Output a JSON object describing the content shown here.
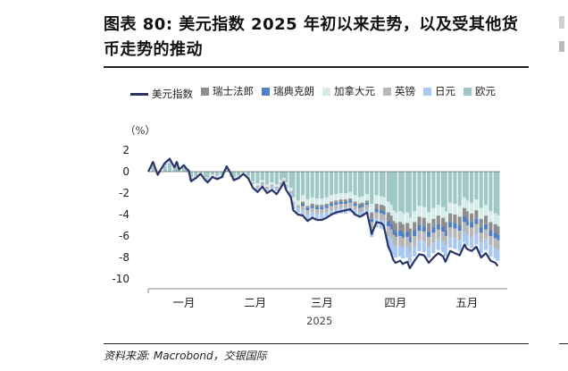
{
  "figure": {
    "title": "图表 80: 美元指数 2025 年初以来走势，以及受其他货币走势的推动",
    "source": "资料来源: Macrobond，交银国际"
  },
  "chart_data": {
    "type": "bar+line",
    "unit_label": "（%）",
    "year_label": "2025",
    "ylim": [
      -10,
      2
    ],
    "yticks": [
      2,
      0,
      -2,
      -4,
      -6,
      -8,
      -10
    ],
    "xticks": [
      {
        "label": "一月",
        "x": 15
      },
      {
        "label": "二月",
        "x": 45
      },
      {
        "label": "三月",
        "x": 73
      },
      {
        "label": "四月",
        "x": 104
      },
      {
        "label": "五月",
        "x": 134
      }
    ],
    "x_range": [
      0,
      148
    ],
    "legend_position": "top",
    "series": [
      {
        "name": "美元指数",
        "kind": "line",
        "color": "#2b3467",
        "x": [
          0,
          2,
          4,
          5,
          7,
          9,
          11,
          12,
          13,
          15,
          16,
          17,
          18,
          20,
          22,
          24,
          25,
          27,
          29,
          31,
          33,
          35,
          36,
          38,
          40,
          42,
          44,
          46,
          48,
          50,
          52,
          54,
          56,
          57,
          58,
          60,
          61,
          63,
          65,
          67,
          69,
          71,
          73,
          75,
          77,
          79,
          81,
          83,
          85,
          87,
          89,
          90,
          92,
          94,
          96,
          98,
          99,
          101,
          102,
          103,
          104,
          106,
          107,
          109,
          110,
          112,
          114,
          116,
          118,
          120,
          122,
          124,
          125,
          127,
          129,
          131,
          133,
          134,
          136,
          138,
          140,
          142,
          144,
          146,
          147
        ],
        "y": [
          0,
          0.9,
          -0.3,
          0.1,
          0.8,
          1.2,
          0.4,
          0.9,
          0.2,
          0.6,
          0.3,
          0.1,
          -0.9,
          -0.6,
          -0.2,
          -0.8,
          -1.0,
          -0.5,
          -0.7,
          -0.5,
          0.5,
          -0.3,
          -0.8,
          -0.6,
          -0.2,
          -0.6,
          -1.5,
          -1.9,
          -1.4,
          -2.0,
          -1.7,
          -2.1,
          -1.4,
          -1.0,
          -1.7,
          -2.4,
          -3.6,
          -4.0,
          -4.1,
          -4.6,
          -4.3,
          -4.5,
          -4.5,
          -4.3,
          -4.0,
          -3.8,
          -3.7,
          -3.6,
          -3.5,
          -4.0,
          -4.2,
          -4.1,
          -3.8,
          -5.8,
          -4.7,
          -4.8,
          -5.0,
          -7.0,
          -7.5,
          -8.2,
          -8.5,
          -8.3,
          -8.6,
          -8.4,
          -9.0,
          -8.3,
          -7.7,
          -7.8,
          -8.5,
          -8.0,
          -7.6,
          -7.9,
          -8.4,
          -7.4,
          -7.6,
          -7.8,
          -6.8,
          -7.2,
          -7.4,
          -7.0,
          -8.0,
          -7.6,
          -8.3,
          -8.5,
          -8.8
        ]
      },
      {
        "name": "瑞士法郎",
        "kind": "bar",
        "color": "#8e8e8e",
        "lead": "加拿大元",
        "x": [
          0,
          2,
          4,
          5,
          7,
          9,
          11,
          12,
          13,
          15,
          16,
          17,
          18,
          20,
          22,
          24,
          25,
          27,
          29,
          31,
          33,
          35,
          36,
          38,
          40,
          42,
          44,
          46,
          48,
          50,
          52,
          54,
          56,
          57,
          58,
          60,
          61,
          63,
          65,
          67,
          69,
          71,
          73,
          75,
          77,
          79,
          81,
          83,
          85,
          87,
          89,
          90,
          92,
          94,
          96,
          98,
          99,
          101,
          102,
          103,
          104,
          106,
          107,
          109,
          110,
          112,
          114,
          116,
          118,
          120,
          122,
          124,
          125,
          127,
          129,
          131,
          133,
          134,
          136,
          138,
          140,
          142,
          144,
          146,
          147
        ],
        "y": [
          0,
          0,
          0,
          0,
          0,
          0,
          0,
          0,
          0,
          0,
          0,
          0,
          0,
          0,
          0,
          0,
          0,
          0,
          0,
          0,
          0,
          0,
          0,
          0,
          0,
          0,
          0,
          0,
          0,
          0,
          0,
          0,
          0,
          0,
          0,
          0,
          0,
          0,
          -0.2,
          -0.2,
          -0.2,
          -0.2,
          -0.2,
          -0.2,
          -0.2,
          -0.2,
          -0.2,
          -0.2,
          -0.2,
          -0.2,
          -0.2,
          -0.2,
          -0.2,
          -0.6,
          -0.5,
          -0.5,
          -0.5,
          -0.8,
          -0.8,
          -0.8,
          -0.8,
          -0.8,
          -0.8,
          -0.8,
          -0.8,
          -0.8,
          -0.8,
          -0.8,
          -0.8,
          -0.8,
          -0.8,
          -0.8,
          -0.8,
          -0.8,
          -0.8,
          -0.8,
          -0.8,
          -0.8,
          -0.8,
          -0.8,
          -0.8,
          -0.8,
          -0.8,
          -0.8,
          -0.8
        ]
      },
      {
        "name": "瑞典克朗",
        "kind": "bar",
        "color": "#4f7fc4",
        "lead": "瑞士法郎",
        "x": [
          0,
          2,
          4,
          5,
          7,
          9,
          11,
          12,
          13,
          15,
          16,
          17,
          18,
          20,
          22,
          24,
          25,
          27,
          29,
          31,
          33,
          35,
          36,
          38,
          40,
          42,
          44,
          46,
          48,
          50,
          52,
          54,
          56,
          57,
          58,
          60,
          61,
          63,
          65,
          67,
          69,
          71,
          73,
          75,
          77,
          79,
          81,
          83,
          85,
          87,
          89,
          90,
          92,
          94,
          96,
          98,
          99,
          101,
          102,
          103,
          104,
          106,
          107,
          109,
          110,
          112,
          114,
          116,
          118,
          120,
          122,
          124,
          125,
          127,
          129,
          131,
          133,
          134,
          136,
          138,
          140,
          142,
          144,
          146,
          147
        ],
        "y": [
          0,
          0,
          0,
          0,
          0,
          0,
          0,
          0,
          0,
          0,
          0,
          0,
          0,
          0,
          0,
          0,
          0,
          0,
          0,
          0,
          0,
          0,
          0,
          0,
          0,
          0,
          0,
          0,
          0,
          0,
          0,
          0,
          0,
          0,
          0,
          0,
          0,
          0,
          -0.2,
          -0.2,
          -0.2,
          -0.2,
          -0.2,
          -0.2,
          -0.2,
          -0.2,
          -0.2,
          -0.2,
          -0.2,
          -0.2,
          -0.2,
          -0.2,
          -0.2,
          -0.3,
          -0.3,
          -0.3,
          -0.3,
          -0.5,
          -0.5,
          -0.5,
          -0.5,
          -0.5,
          -0.5,
          -0.5,
          -0.5,
          -0.5,
          -0.5,
          -0.5,
          -0.5,
          -0.5,
          -0.5,
          -0.5,
          -0.5,
          -0.5,
          -0.5,
          -0.5,
          -0.5,
          -0.5,
          -0.5,
          -0.5,
          -0.5,
          -0.5,
          -0.5,
          -0.5,
          -0.5
        ]
      },
      {
        "name": "加拿大元",
        "kind": "bar",
        "color": "#d6ece8",
        "lead": "欧元",
        "x": [
          0,
          2,
          4,
          5,
          7,
          9,
          11,
          12,
          13,
          15,
          16,
          17,
          18,
          20,
          22,
          24,
          25,
          27,
          29,
          31,
          33,
          35,
          36,
          38,
          40,
          42,
          44,
          46,
          48,
          50,
          52,
          54,
          56,
          57,
          58,
          60,
          61,
          63,
          65,
          67,
          69,
          71,
          73,
          75,
          77,
          79,
          81,
          83,
          85,
          87,
          89,
          90,
          92,
          94,
          96,
          98,
          99,
          101,
          102,
          103,
          104,
          106,
          107,
          109,
          110,
          112,
          114,
          116,
          118,
          120,
          122,
          124,
          125,
          127,
          129,
          131,
          133,
          134,
          136,
          138,
          140,
          142,
          144,
          146,
          147
        ],
        "y": [
          0,
          0.1,
          0,
          0,
          0.1,
          0.1,
          0,
          0.1,
          0,
          0,
          0,
          0,
          -0.1,
          -0.1,
          -0.1,
          -0.1,
          -0.1,
          -0.1,
          -0.1,
          -0.1,
          0,
          -0.1,
          -0.1,
          -0.1,
          -0.1,
          -0.1,
          -0.1,
          -0.2,
          -0.2,
          -0.2,
          -0.2,
          -0.2,
          -0.2,
          -0.2,
          -0.2,
          -0.3,
          -0.4,
          -0.4,
          -0.6,
          -0.6,
          -0.6,
          -0.6,
          -0.6,
          -0.6,
          -0.6,
          -0.6,
          -0.6,
          -0.6,
          -0.6,
          -0.6,
          -0.6,
          -0.6,
          -0.6,
          -0.8,
          -0.8,
          -0.8,
          -0.8,
          -1.0,
          -1.0,
          -1.0,
          -1.0,
          -1.0,
          -1.0,
          -1.0,
          -1.0,
          -1.0,
          -1.0,
          -1.0,
          -1.0,
          -1.0,
          -1.0,
          -1.0,
          -1.0,
          -1.0,
          -1.0,
          -1.0,
          -1.0,
          -1.0,
          -1.0,
          -1.0,
          -1.0,
          -1.0,
          -1.0,
          -1.0,
          -1.0
        ]
      },
      {
        "name": "英镑",
        "kind": "bar",
        "color": "#b7b7b7",
        "lead": "瑞典克朗",
        "x": [
          0,
          2,
          4,
          5,
          7,
          9,
          11,
          12,
          13,
          15,
          16,
          17,
          18,
          20,
          22,
          24,
          25,
          27,
          29,
          31,
          33,
          35,
          36,
          38,
          40,
          42,
          44,
          46,
          48,
          50,
          52,
          54,
          56,
          57,
          58,
          60,
          61,
          63,
          65,
          67,
          69,
          71,
          73,
          75,
          77,
          79,
          81,
          83,
          85,
          87,
          89,
          90,
          92,
          94,
          96,
          98,
          99,
          101,
          102,
          103,
          104,
          106,
          107,
          109,
          110,
          112,
          114,
          116,
          118,
          120,
          122,
          124,
          125,
          127,
          129,
          131,
          133,
          134,
          136,
          138,
          140,
          142,
          144,
          146,
          147
        ],
        "y": [
          0,
          0.1,
          0,
          0,
          0.1,
          0.1,
          0,
          0.1,
          0,
          0,
          0,
          0,
          -0.1,
          -0.1,
          -0.1,
          -0.1,
          -0.1,
          -0.1,
          -0.1,
          -0.1,
          0,
          -0.1,
          -0.1,
          -0.1,
          -0.1,
          -0.1,
          -0.1,
          -0.2,
          -0.2,
          -0.2,
          -0.2,
          -0.2,
          -0.2,
          -0.2,
          -0.2,
          -0.2,
          -0.3,
          -0.3,
          -0.4,
          -0.4,
          -0.4,
          -0.4,
          -0.4,
          -0.4,
          -0.4,
          -0.4,
          -0.4,
          -0.4,
          -0.4,
          -0.4,
          -0.4,
          -0.4,
          -0.4,
          -0.6,
          -0.6,
          -0.6,
          -0.6,
          -0.9,
          -0.9,
          -0.9,
          -0.9,
          -0.9,
          -0.9,
          -0.9,
          -0.9,
          -0.9,
          -0.9,
          -0.9,
          -0.9,
          -0.9,
          -0.9,
          -0.9,
          -0.9,
          -0.9,
          -0.9,
          -0.9,
          -0.9,
          -0.9,
          -0.9,
          -0.9,
          -0.9,
          -0.9,
          -0.9,
          -0.9,
          -0.9
        ]
      },
      {
        "name": "日元",
        "kind": "bar",
        "color": "#a9c8f2",
        "lead": "英镑",
        "x": [
          0,
          2,
          4,
          5,
          7,
          9,
          11,
          12,
          13,
          15,
          16,
          17,
          18,
          20,
          22,
          24,
          25,
          27,
          29,
          31,
          33,
          35,
          36,
          38,
          40,
          42,
          44,
          46,
          48,
          50,
          52,
          54,
          56,
          57,
          58,
          60,
          61,
          63,
          65,
          67,
          69,
          71,
          73,
          75,
          77,
          79,
          81,
          83,
          85,
          87,
          89,
          90,
          92,
          94,
          96,
          98,
          99,
          101,
          102,
          103,
          104,
          106,
          107,
          109,
          110,
          112,
          114,
          116,
          118,
          120,
          122,
          124,
          125,
          127,
          129,
          131,
          133,
          134,
          136,
          138,
          140,
          142,
          144,
          146,
          147
        ],
        "y": [
          0,
          0.1,
          0,
          0,
          0.1,
          0.1,
          0,
          0.1,
          0,
          0,
          0,
          0,
          -0.1,
          -0.1,
          -0.1,
          -0.1,
          -0.1,
          -0.1,
          -0.1,
          -0.1,
          0,
          -0.1,
          -0.1,
          -0.1,
          -0.1,
          -0.1,
          -0.1,
          -0.2,
          -0.2,
          -0.2,
          -0.2,
          -0.2,
          -0.2,
          -0.2,
          -0.2,
          -0.3,
          -0.4,
          -0.4,
          -0.5,
          -0.5,
          -0.5,
          -0.5,
          -0.5,
          -0.5,
          -0.5,
          -0.5,
          -0.5,
          -0.5,
          -0.5,
          -0.5,
          -0.5,
          -0.5,
          -0.5,
          -0.8,
          -0.8,
          -0.8,
          -0.8,
          -1.0,
          -1.0,
          -1.0,
          -1.0,
          -1.0,
          -1.0,
          -1.0,
          -1.0,
          -1.0,
          -1.0,
          -1.0,
          -1.0,
          -1.0,
          -1.0,
          -1.0,
          -1.0,
          -1.0,
          -1.0,
          -1.0,
          -1.0,
          -1.0,
          -1.0,
          -1.0,
          -1.0,
          -1.0,
          -1.0,
          -1.0,
          -1.0
        ]
      },
      {
        "name": "欧元",
        "kind": "bar",
        "color": "#9fc7c7",
        "x": [
          0,
          2,
          4,
          5,
          7,
          9,
          11,
          12,
          13,
          15,
          16,
          17,
          18,
          20,
          22,
          24,
          25,
          27,
          29,
          31,
          33,
          35,
          36,
          38,
          40,
          42,
          44,
          46,
          48,
          50,
          52,
          54,
          56,
          57,
          58,
          60,
          61,
          63,
          65,
          67,
          69,
          71,
          73,
          75,
          77,
          79,
          81,
          83,
          85,
          87,
          89,
          90,
          92,
          94,
          96,
          98,
          99,
          101,
          102,
          103,
          104,
          106,
          107,
          109,
          110,
          112,
          114,
          116,
          118,
          120,
          122,
          124,
          125,
          127,
          129,
          131,
          133,
          134,
          136,
          138,
          140,
          142,
          144,
          146,
          147
        ],
        "y": [
          0,
          0.6,
          -0.2,
          0.1,
          0.5,
          0.8,
          0.3,
          0.6,
          0.1,
          0.4,
          0.2,
          0.1,
          -0.5,
          -0.4,
          -0.1,
          -0.5,
          -0.6,
          -0.3,
          -0.4,
          -0.3,
          0.4,
          -0.2,
          -0.5,
          -0.4,
          -0.1,
          -0.4,
          -0.9,
          -1.1,
          -0.8,
          -1.2,
          -1.0,
          -1.2,
          -0.8,
          -0.6,
          -1.0,
          -1.5,
          -2.4,
          -2.7,
          -2.2,
          -2.6,
          -2.4,
          -2.5,
          -2.5,
          -2.4,
          -2.2,
          -2.1,
          -2.0,
          -2.0,
          -1.9,
          -2.2,
          -2.4,
          -2.3,
          -2.1,
          -3.0,
          -2.2,
          -2.3,
          -2.4,
          -2.8,
          -3.1,
          -3.6,
          -3.8,
          -3.7,
          -3.9,
          -3.8,
          -4.3,
          -3.7,
          -3.2,
          -3.3,
          -3.8,
          -3.4,
          -3.1,
          -3.3,
          -3.7,
          -2.9,
          -3.0,
          -3.2,
          -2.4,
          -2.7,
          -2.9,
          -2.6,
          -3.4,
          -3.1,
          -3.7,
          -3.9,
          -4.1
        ]
      }
    ]
  }
}
